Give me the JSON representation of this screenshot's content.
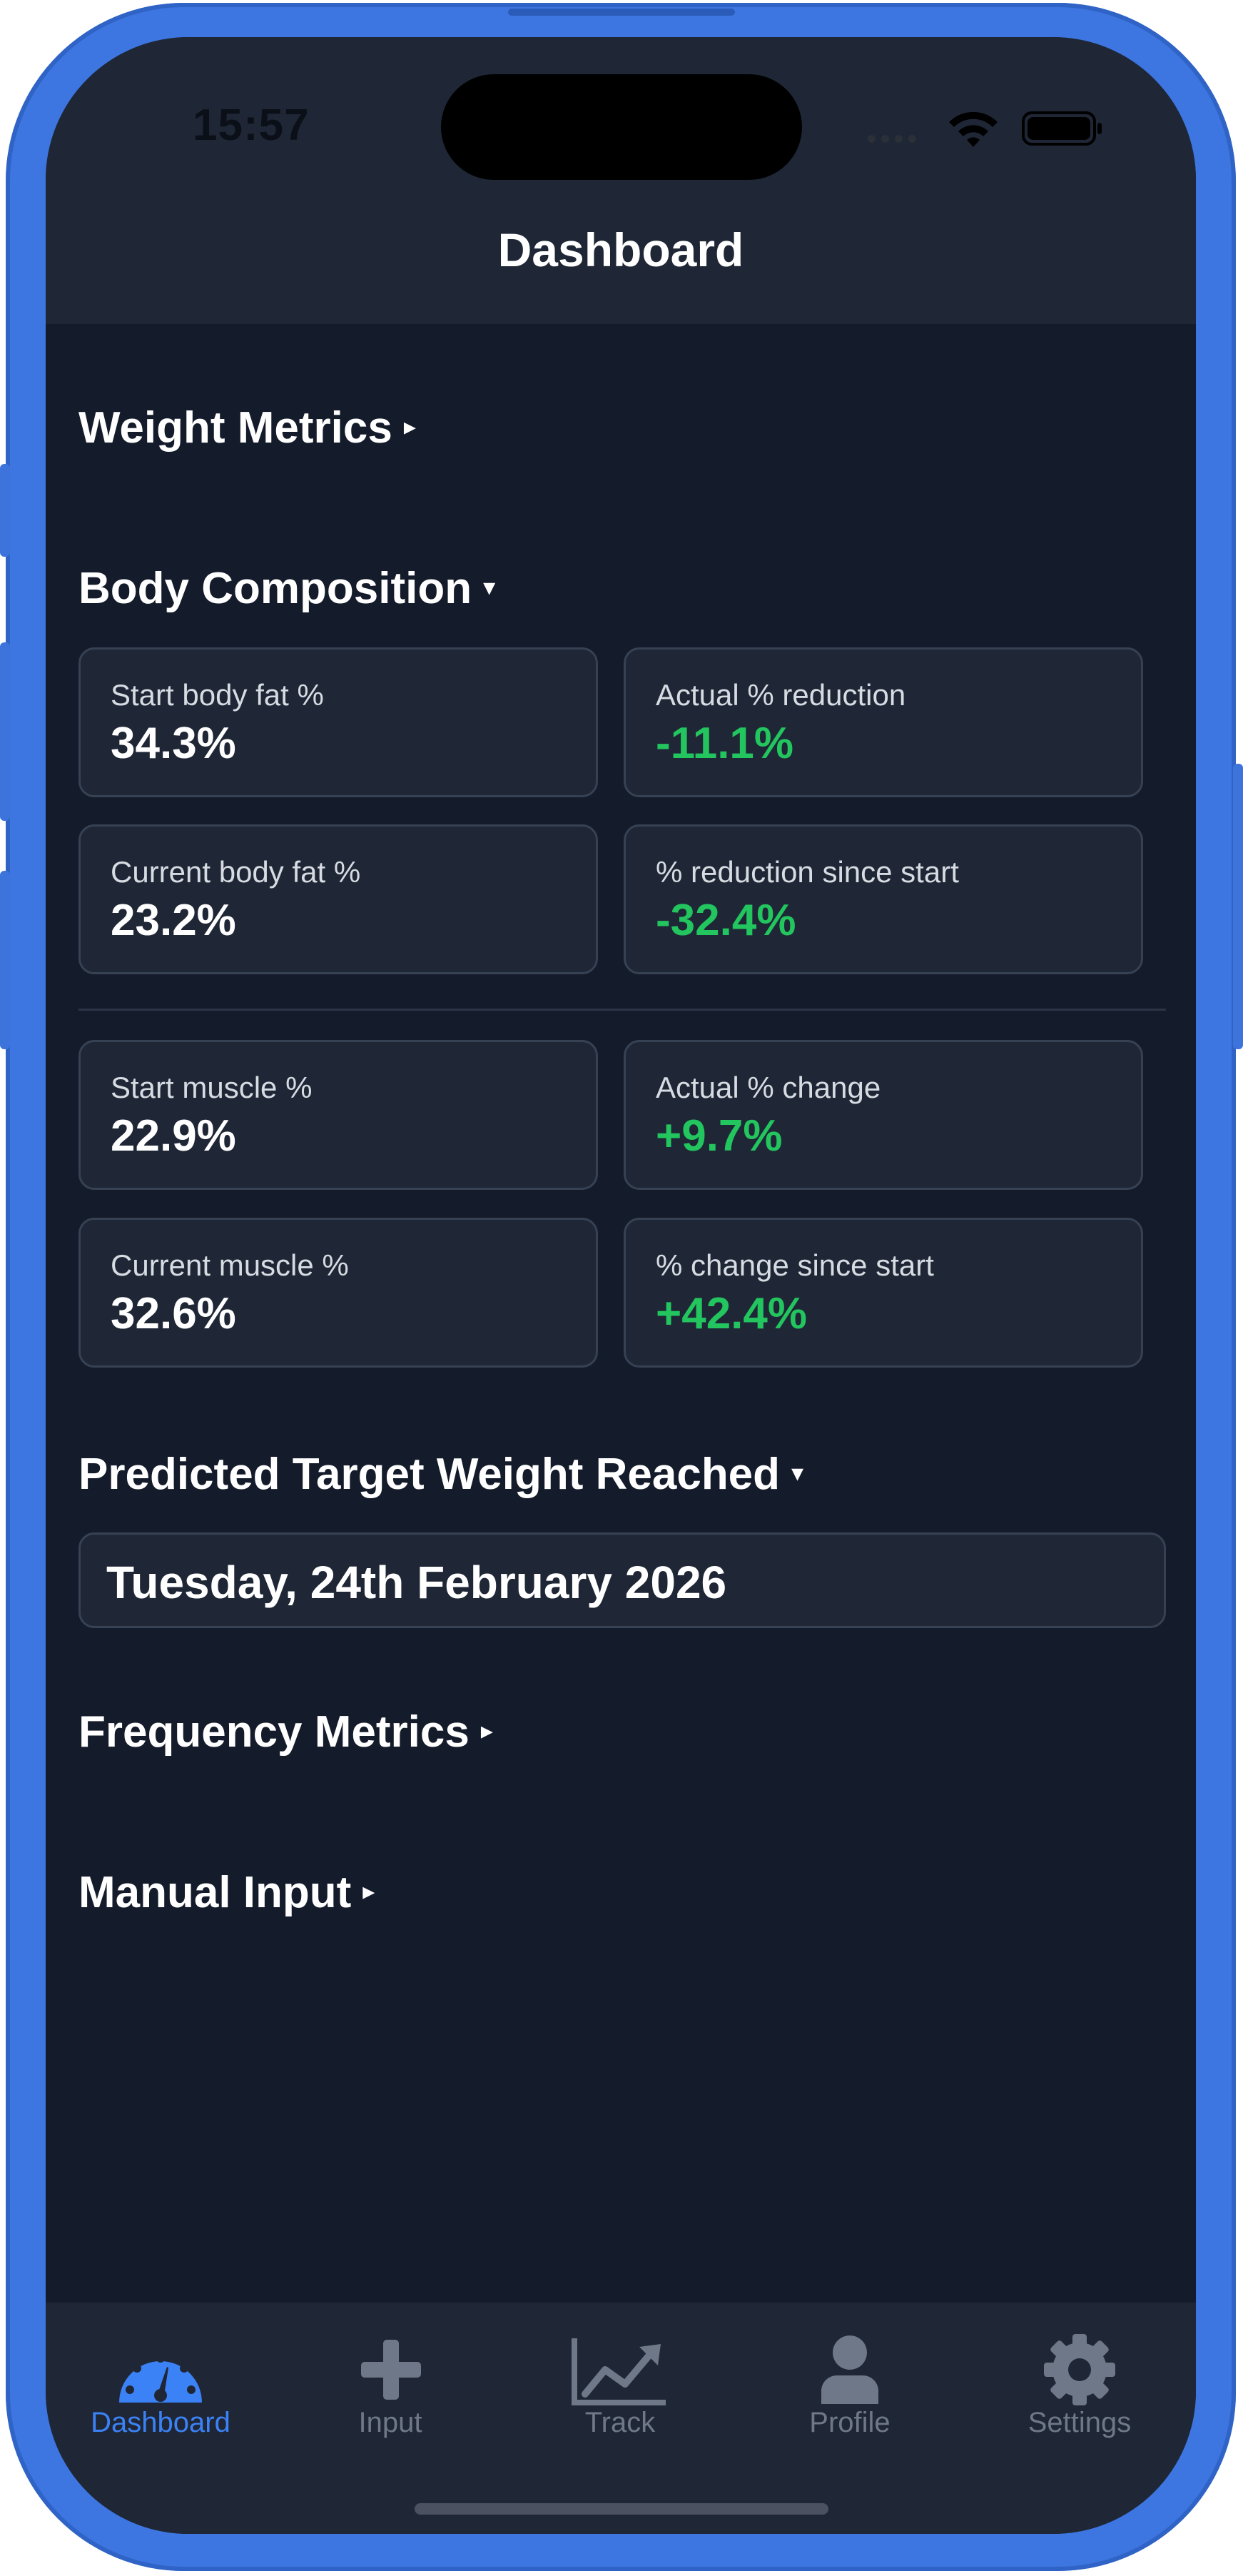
{
  "status_bar": {
    "time": "15:57"
  },
  "nav": {
    "title": "Dashboard"
  },
  "sections": {
    "weight_metrics": {
      "label": "Weight Metrics",
      "arrow": "▸"
    },
    "body_composition": {
      "label": "Body Composition",
      "arrow": "▾"
    },
    "predicted_target": {
      "label": "Predicted Target Weight Reached",
      "arrow": "▾"
    },
    "frequency_metrics": {
      "label": "Frequency Metrics",
      "arrow": "▸"
    },
    "manual_input": {
      "label": "Manual Input",
      "arrow": "▸"
    }
  },
  "body_fat": {
    "start_label": "Start body fat %",
    "start_value": "34.3%",
    "actual_label": "Actual % reduction",
    "actual_value": "-11.1%",
    "current_label": "Current body fat %",
    "current_value": "23.2%",
    "since_label": "% reduction since start",
    "since_value": "-32.4%"
  },
  "muscle": {
    "start_label": "Start muscle %",
    "start_value": "22.9%",
    "actual_label": "Actual % change",
    "actual_value": "+9.7%",
    "current_label": "Current muscle %",
    "current_value": "32.6%",
    "since_label": "% change since start",
    "since_value": "+42.4%"
  },
  "predicted_date": "Tuesday, 24th February 2026",
  "tabs": [
    {
      "label": "Dashboard",
      "icon": "dashboard-gauge-icon",
      "active": true
    },
    {
      "label": "Input",
      "icon": "plus-icon",
      "active": false
    },
    {
      "label": "Track",
      "icon": "line-chart-icon",
      "active": false
    },
    {
      "label": "Profile",
      "icon": "person-icon",
      "active": false
    },
    {
      "label": "Settings",
      "icon": "gear-icon",
      "active": false
    }
  ],
  "colors": {
    "accent": "#3b82f6",
    "positive": "#22c55e",
    "background": "#141b2b",
    "card": "#1f2736",
    "frame": "#3d76e0"
  }
}
